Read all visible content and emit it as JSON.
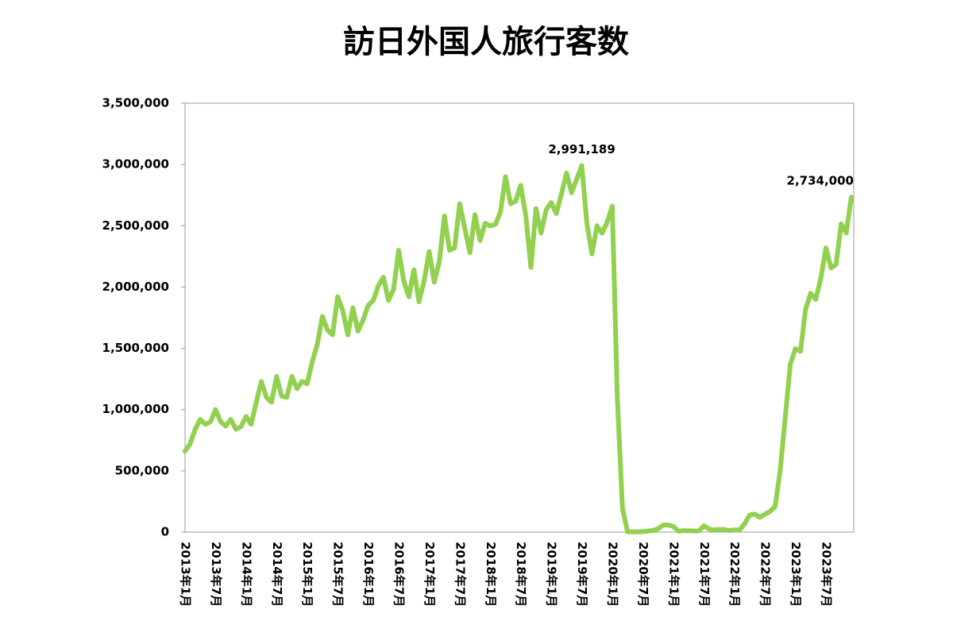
{
  "chart_data": {
    "type": "line",
    "title": "訪日外国人旅行客数",
    "categories": [
      "2013年1月",
      null,
      null,
      null,
      null,
      null,
      "2013年7月",
      null,
      null,
      null,
      null,
      null,
      "2014年1月",
      null,
      null,
      null,
      null,
      null,
      "2014年7月",
      null,
      null,
      null,
      null,
      null,
      "2015年1月",
      null,
      null,
      null,
      null,
      null,
      "2015年7月",
      null,
      null,
      null,
      null,
      null,
      "2016年1月",
      null,
      null,
      null,
      null,
      null,
      "2016年7月",
      null,
      null,
      null,
      null,
      null,
      "2017年1月",
      null,
      null,
      null,
      null,
      null,
      "2017年7月",
      null,
      null,
      null,
      null,
      null,
      "2018年1月",
      null,
      null,
      null,
      null,
      null,
      "2018年7月",
      null,
      null,
      null,
      null,
      null,
      "2019年1月",
      null,
      null,
      null,
      null,
      null,
      "2019年7月",
      null,
      null,
      null,
      null,
      null,
      "2020年1月",
      null,
      null,
      null,
      null,
      null,
      "2020年7月",
      null,
      null,
      null,
      null,
      null,
      "2021年1月",
      null,
      null,
      null,
      null,
      null,
      "2021年7月",
      null,
      null,
      null,
      null,
      null,
      "2022年1月",
      null,
      null,
      null,
      null,
      null,
      "2022年7月",
      null,
      null,
      null,
      null,
      null,
      "2023年1月",
      null,
      null,
      null,
      null,
      null,
      "2023年7月",
      null,
      null,
      null,
      null,
      null
    ],
    "series": [
      {
        "name": "訪日外国人旅行客数",
        "color": "#92d050",
        "values": [
          660000,
          720000,
          840000,
          920000,
          880000,
          900000,
          1000000,
          900000,
          865000,
          920000,
          840000,
          860000,
          944000,
          880000,
          1060000,
          1230000,
          1100000,
          1060000,
          1270000,
          1110000,
          1100000,
          1270000,
          1170000,
          1230000,
          1210000,
          1390000,
          1530000,
          1760000,
          1650000,
          1610000,
          1920000,
          1810000,
          1610000,
          1830000,
          1640000,
          1730000,
          1850000,
          1890000,
          2010000,
          2080000,
          1890000,
          1980000,
          2300000,
          2050000,
          1920000,
          2140000,
          1880000,
          2050000,
          2290000,
          2040000,
          2210000,
          2580000,
          2300000,
          2320000,
          2680000,
          2480000,
          2280000,
          2590000,
          2380000,
          2520000,
          2500000,
          2510000,
          2610000,
          2900000,
          2680000,
          2700000,
          2830000,
          2580000,
          2160000,
          2640000,
          2440000,
          2630000,
          2690000,
          2600000,
          2760000,
          2930000,
          2770000,
          2880000,
          2991189,
          2520000,
          2270000,
          2500000,
          2440000,
          2530000,
          2660000,
          1085000,
          194000,
          2900,
          1700,
          2600,
          3800,
          8700,
          13700,
          27400,
          56700,
          58700,
          46500,
          7400,
          12300,
          10900,
          10000,
          9300,
          51100,
          25900,
          17700,
          22100,
          20700,
          12100,
          17800,
          16700,
          66100,
          139500,
          147000,
          120000,
          145000,
          169000,
          207000,
          499000,
          934000,
          1370000,
          1497000,
          1475000,
          1817000,
          1949000,
          1899000,
          2073000,
          2320000,
          2156000,
          2184000,
          2516000,
          2441000,
          2734000
        ],
        "value_labels": [
          null,
          null,
          null,
          null,
          null,
          null,
          null,
          null,
          null,
          null,
          null,
          null,
          null,
          null,
          null,
          null,
          null,
          null,
          null,
          null,
          null,
          null,
          null,
          null,
          null,
          null,
          null,
          null,
          null,
          null,
          null,
          null,
          null,
          null,
          null,
          null,
          null,
          null,
          null,
          null,
          null,
          null,
          null,
          null,
          null,
          null,
          null,
          null,
          null,
          null,
          null,
          null,
          null,
          null,
          null,
          null,
          null,
          null,
          null,
          null,
          null,
          null,
          null,
          null,
          null,
          null,
          null,
          null,
          null,
          null,
          null,
          null,
          null,
          null,
          null,
          null,
          null,
          null,
          "2,991,189",
          null,
          null,
          null,
          null,
          null,
          null,
          null,
          null,
          null,
          null,
          null,
          null,
          null,
          null,
          null,
          null,
          null,
          null,
          null,
          null,
          null,
          null,
          null,
          null,
          null,
          null,
          null,
          null,
          null,
          null,
          null,
          null,
          null,
          null,
          null,
          null,
          null,
          null,
          null,
          null,
          null,
          null,
          null,
          null,
          null,
          null,
          null,
          null,
          null,
          null,
          null,
          null,
          "2,734,000"
        ]
      }
    ],
    "ylim": [
      0,
      3500000
    ],
    "yticks": [
      0,
      {
        "value": 500000,
        "label": "500,000"
      },
      {
        "value": 1000000,
        "label": "1,000,000"
      },
      {
        "value": 1500000,
        "label": "1,500,000"
      },
      {
        "value": 2000000,
        "label": "2,000,000"
      },
      {
        "value": 2500000,
        "label": "2,500,000"
      },
      {
        "value": 3000000,
        "label": "3,000,000"
      },
      {
        "value": 3500000,
        "label": "3,500,000"
      }
    ],
    "grid": false
  }
}
